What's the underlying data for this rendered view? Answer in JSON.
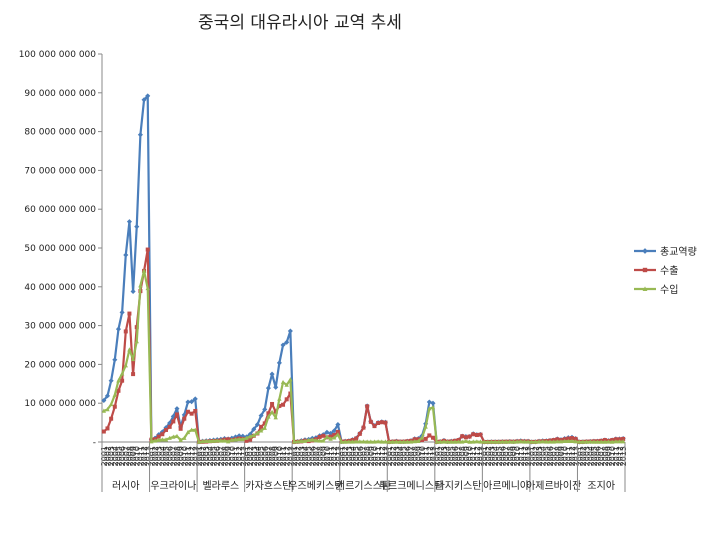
{
  "chart_data": {
    "type": "line",
    "title": "중국의 대유라시아 교역 추세",
    "xlabel": "",
    "ylabel": "",
    "ylim": [
      0,
      100000000000
    ],
    "ytick_labels": [
      "-",
      "10 000 000 000",
      "20 000 000 000",
      "30 000 000 000",
      "40 000 000 000",
      "50 000 000 000",
      "60 000 000 000",
      "70 000 000 000",
      "80 000 000 000",
      "90 000 000 000",
      "100 000 000 000"
    ],
    "grid": false,
    "legend_position": "right",
    "year_labels": [
      "2001",
      "2002",
      "2003",
      "2004",
      "2005",
      "2006",
      "2007",
      "2008",
      "2009",
      "2010",
      "2011",
      "2012",
      "2013"
    ],
    "groups": [
      "러시아",
      "우크라이나",
      "벨라루스",
      "카자흐스탄",
      "우즈베키스탄",
      "키르기스스탄",
      "투르크메니스탄",
      "타지키스탄",
      "아르메니아",
      "아제르바이잔",
      "조지아"
    ],
    "series": [
      {
        "name": "총교역량",
        "color": "#4a7ebb",
        "values": [
          10.7,
          11.9,
          15.8,
          21.2,
          29.1,
          33.4,
          48.2,
          56.8,
          38.8,
          55.5,
          79.2,
          88.2,
          89.2,
          0.7,
          1.0,
          1.9,
          2.6,
          3.7,
          4.9,
          6.6,
          8.6,
          3.9,
          7.0,
          10.3,
          10.4,
          11.1,
          0.04,
          0.2,
          0.3,
          0.4,
          0.5,
          0.6,
          0.7,
          0.9,
          0.8,
          1.0,
          1.3,
          1.6,
          1.5,
          1.3,
          2.0,
          3.3,
          4.5,
          6.8,
          8.4,
          13.9,
          17.5,
          14.1,
          20.4,
          25.0,
          25.7,
          28.6,
          0.06,
          0.13,
          0.35,
          0.58,
          0.68,
          0.97,
          1.1,
          1.6,
          1.9,
          2.5,
          2.2,
          2.9,
          4.5,
          0.1,
          0.2,
          0.3,
          0.6,
          1.0,
          2.2,
          3.8,
          9.3,
          5.3,
          4.2,
          5.0,
          5.2,
          5.1,
          0.03,
          0.1,
          0.2,
          0.1,
          0.1,
          0.2,
          0.35,
          0.83,
          0.9,
          1.6,
          4.7,
          10.3,
          10.0,
          0.01,
          0.1,
          0.4,
          0.1,
          0.2,
          0.3,
          0.5,
          1.5,
          1.4,
          1.4,
          2.1,
          1.9,
          1.95,
          0.01,
          0.02,
          0.05,
          0.05,
          0.06,
          0.1,
          0.1,
          0.15,
          0.1,
          0.2,
          0.3,
          0.2,
          0.2,
          0.02,
          0.05,
          0.2,
          0.3,
          0.3,
          0.4,
          0.5,
          0.8,
          0.6,
          0.9,
          1.1,
          1.2,
          0.9,
          0.02,
          0.05,
          0.1,
          0.15,
          0.2,
          0.2,
          0.3,
          0.5,
          0.35,
          0.5,
          0.8,
          0.8,
          0.9
        ]
      },
      {
        "name": "수출",
        "color": "#be4b48",
        "values": [
          2.7,
          3.5,
          6.0,
          9.1,
          13.2,
          15.8,
          28.5,
          33.1,
          17.5,
          29.6,
          38.9,
          44.1,
          49.6,
          0.6,
          0.7,
          1.4,
          2.0,
          3.1,
          3.9,
          5.3,
          7.1,
          3.4,
          6.0,
          7.8,
          7.3,
          8.0,
          0.03,
          0.05,
          0.1,
          0.2,
          0.25,
          0.3,
          0.4,
          0.6,
          0.7,
          0.5,
          0.7,
          0.9,
          0.8,
          0.3,
          0.6,
          1.6,
          2.2,
          3.9,
          4.8,
          7.4,
          9.8,
          7.8,
          9.3,
          9.6,
          11.0,
          12.5,
          0.02,
          0.06,
          0.15,
          0.35,
          0.23,
          0.4,
          0.7,
          1.3,
          1.6,
          1.2,
          1.4,
          1.8,
          2.6,
          0.1,
          0.15,
          0.25,
          0.5,
          0.9,
          2.1,
          3.7,
          9.2,
          5.2,
          4.1,
          4.9,
          5.1,
          5.0,
          0.02,
          0.1,
          0.15,
          0.08,
          0.1,
          0.2,
          0.3,
          0.7,
          0.7,
          0.5,
          0.8,
          1.7,
          1.1,
          0.01,
          0.1,
          0.3,
          0.1,
          0.15,
          0.3,
          0.5,
          1.5,
          1.2,
          1.4,
          2.0,
          1.8,
          1.9,
          0.01,
          0.01,
          0.03,
          0.03,
          0.04,
          0.07,
          0.08,
          0.1,
          0.08,
          0.15,
          0.18,
          0.15,
          0.15,
          0.02,
          0.04,
          0.15,
          0.2,
          0.25,
          0.35,
          0.5,
          0.7,
          0.5,
          0.7,
          0.9,
          1.0,
          0.8,
          0.02,
          0.04,
          0.1,
          0.12,
          0.18,
          0.2,
          0.3,
          0.5,
          0.3,
          0.5,
          0.7,
          0.7,
          0.8
        ]
      },
      {
        "name": "수입",
        "color": "#98b954",
        "values": [
          8.0,
          8.4,
          9.7,
          12.1,
          15.8,
          17.6,
          19.7,
          23.8,
          21.3,
          25.9,
          40.3,
          44.1,
          39.6,
          0.1,
          0.3,
          0.5,
          0.6,
          0.6,
          1.0,
          1.3,
          1.5,
          0.5,
          1.0,
          2.5,
          3.1,
          3.1,
          0.01,
          0.15,
          0.2,
          0.2,
          0.25,
          0.3,
          0.3,
          0.3,
          0.1,
          0.5,
          0.6,
          0.7,
          0.7,
          1.0,
          1.4,
          1.7,
          2.3,
          2.9,
          3.6,
          6.5,
          7.7,
          6.3,
          11.1,
          15.4,
          14.7,
          16.1,
          0.04,
          0.07,
          0.2,
          0.23,
          0.45,
          0.57,
          0.4,
          0.3,
          0.3,
          1.3,
          0.8,
          1.1,
          1.9,
          0.01,
          0.02,
          0.03,
          0.05,
          0.07,
          0.08,
          0.08,
          0.06,
          0.05,
          0.06,
          0.1,
          0.06,
          0.05,
          0.01,
          0.01,
          0.02,
          0.02,
          0.01,
          0.02,
          0.05,
          0.13,
          0.2,
          1.1,
          3.9,
          8.6,
          8.9,
          0.0,
          0.01,
          0.05,
          0.01,
          0.02,
          0.02,
          0.03,
          0.04,
          0.2,
          0.02,
          0.05,
          0.1,
          0.05,
          0.0,
          0.01,
          0.02,
          0.02,
          0.02,
          0.03,
          0.02,
          0.05,
          0.02,
          0.05,
          0.12,
          0.05,
          0.05,
          0.0,
          0.01,
          0.05,
          0.1,
          0.05,
          0.05,
          0.03,
          0.1,
          0.1,
          0.2,
          0.2,
          0.2,
          0.1,
          0.0,
          0.01,
          0.0,
          0.03,
          0.02,
          0.0,
          0.0,
          0.0,
          0.05,
          0.0,
          0.1,
          0.1,
          0.1
        ]
      }
    ]
  }
}
